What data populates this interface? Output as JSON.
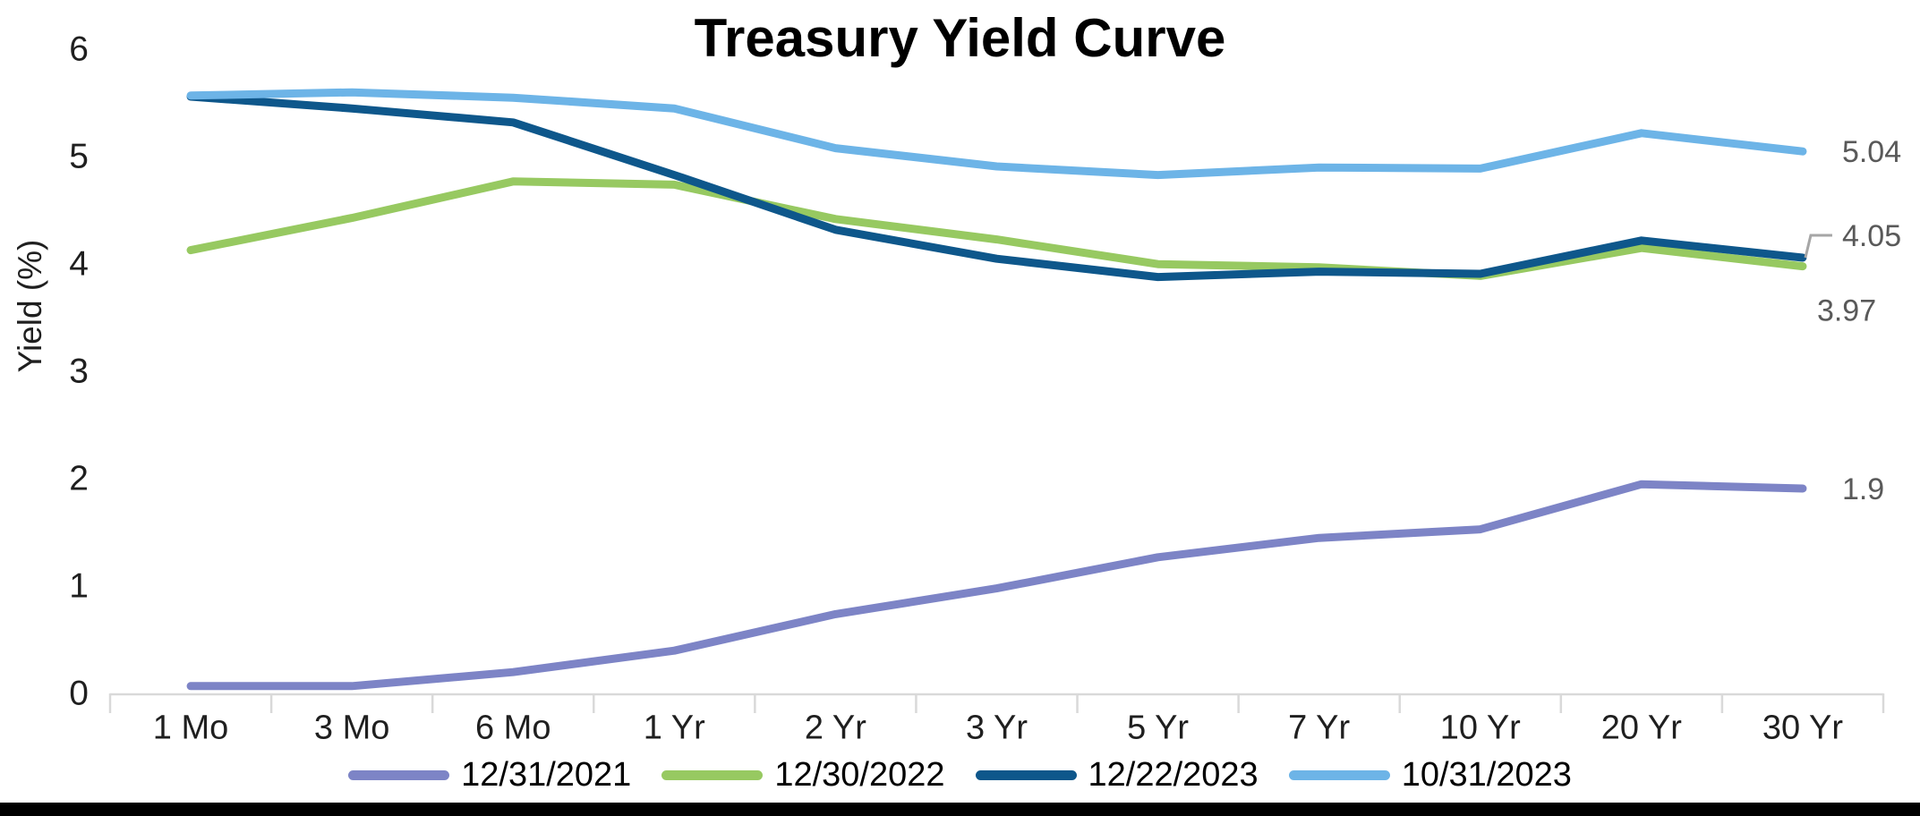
{
  "chart_data": {
    "type": "line",
    "title": "Treasury Yield Curve",
    "xlabel": "",
    "ylabel": "Yield (%)",
    "categories": [
      "1 Mo",
      "3 Mo",
      "6 Mo",
      "1 Yr",
      "2 Yr",
      "3 Yr",
      "5 Yr",
      "7 Yr",
      "10 Yr",
      "20 Yr",
      "30 Yr"
    ],
    "y_ticks": [
      0,
      1,
      2,
      3,
      4,
      5,
      6
    ],
    "ylim": [
      0,
      6
    ],
    "grid": false,
    "legend_position": "bottom",
    "axis_color": "#d9d9d9",
    "tick_label_color": "#1f1f1f",
    "end_label_color": "#595959",
    "leader_line_color": "#a6a6a6",
    "series": [
      {
        "name": "12/31/2021",
        "color": "#7d84c6",
        "values": [
          0.06,
          0.06,
          0.19,
          0.39,
          0.73,
          0.97,
          1.26,
          1.44,
          1.52,
          1.94,
          1.9
        ],
        "end_label": "1.9",
        "end_label_dy": 0,
        "end_label_dx": 44,
        "end_label_leader": false
      },
      {
        "name": "12/30/2022",
        "color": "#97c961",
        "values": [
          4.12,
          4.42,
          4.76,
          4.73,
          4.41,
          4.22,
          3.99,
          3.96,
          3.88,
          4.14,
          3.97
        ],
        "end_label": "3.97",
        "end_label_dy": 49,
        "end_label_dx": 16,
        "end_label_leader": false
      },
      {
        "name": "12/22/2023",
        "color": "#0e578b",
        "values": [
          5.55,
          5.44,
          5.31,
          4.82,
          4.31,
          4.04,
          3.87,
          3.92,
          3.9,
          4.21,
          4.05
        ],
        "end_label": "4.05",
        "end_label_dy": -25,
        "end_label_dx": 44,
        "end_label_leader": true
      },
      {
        "name": "10/31/2023",
        "color": "#6db4e7",
        "values": [
          5.56,
          5.59,
          5.54,
          5.44,
          5.07,
          4.9,
          4.82,
          4.89,
          4.88,
          5.21,
          5.04
        ],
        "end_label": "5.04",
        "end_label_dy": 0,
        "end_label_dx": 44,
        "end_label_leader": false
      }
    ]
  }
}
